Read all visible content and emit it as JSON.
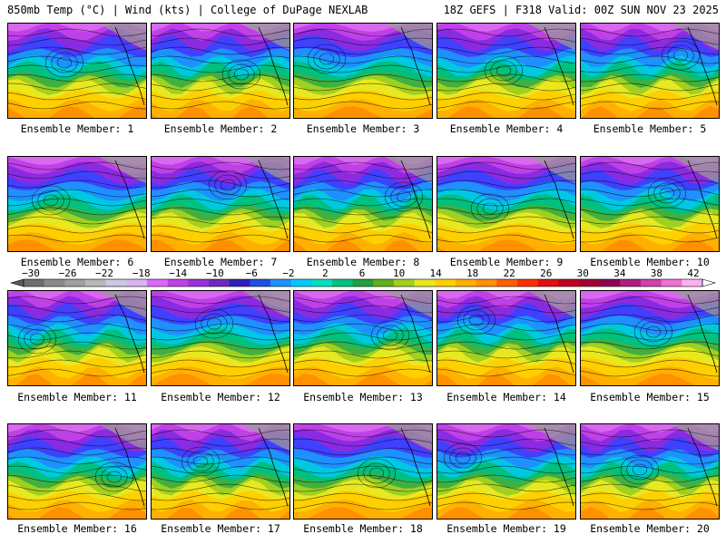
{
  "header": {
    "left": "850mb Temp (°C) | Wind (kts) | College of DuPage NEXLAB",
    "right": "18Z GEFS | F318 Valid: 00Z SUN NOV 23 2025"
  },
  "member_prefix": "Ensemble Member:",
  "members": [
    1,
    2,
    3,
    4,
    5,
    6,
    7,
    8,
    9,
    10,
    11,
    12,
    13,
    14,
    15,
    16,
    17,
    18,
    19,
    20
  ],
  "colorbar": {
    "labels": [
      "-30",
      "-26",
      "-22",
      "-18",
      "-14",
      "-10",
      "-6",
      "-2",
      "2",
      "6",
      "10",
      "14",
      "18",
      "22",
      "26",
      "30",
      "34",
      "38",
      "42"
    ],
    "colors": [
      "#6e6e6e",
      "#8a8a8a",
      "#a0a0a0",
      "#b8b8b8",
      "#c9c9e6",
      "#d8b4f0",
      "#e066ff",
      "#c040e8",
      "#9b30d8",
      "#7028c0",
      "#3020b8",
      "#2050e0",
      "#1e90ff",
      "#00c8ff",
      "#00e0c0",
      "#00c080",
      "#20a040",
      "#60b020",
      "#a0d020",
      "#e8e820",
      "#ffd000",
      "#ffb000",
      "#ff9000",
      "#ff6000",
      "#ff3000",
      "#e01010",
      "#c00020",
      "#a00030",
      "#900050",
      "#b02080",
      "#d040b0",
      "#f070d0",
      "#ffb0f0"
    ]
  },
  "map_palette": [
    "#c040e8",
    "#8a2be2",
    "#4040ff",
    "#1e90ff",
    "#00c8e0",
    "#00c080",
    "#40b040",
    "#a0d020",
    "#e8e820",
    "#ffd000",
    "#ffb000",
    "#ff9000"
  ]
}
